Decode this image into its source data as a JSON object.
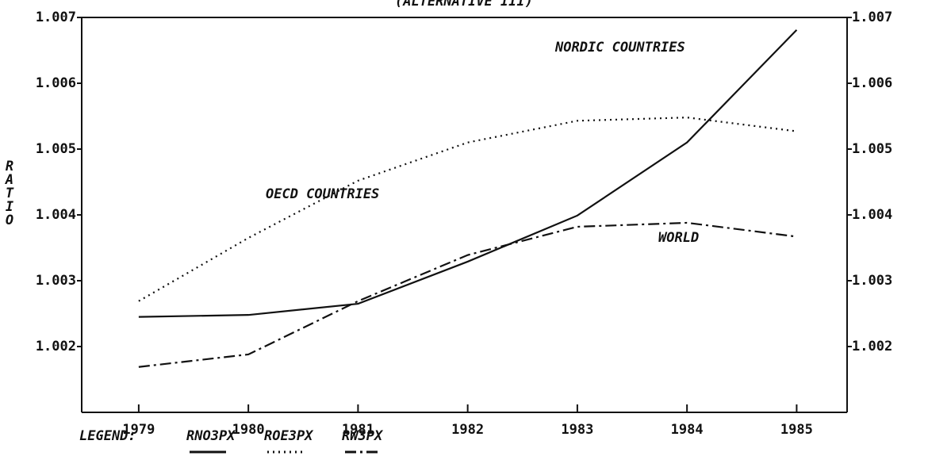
{
  "chart_data": {
    "type": "line",
    "subtitle": "(ALTERNATIVE III)",
    "y_label": "RATIO",
    "x": [
      1979,
      1980,
      1981,
      1982,
      1983,
      1984,
      1985
    ],
    "xlim": [
      1978.48,
      1985.46
    ],
    "xticks": [
      1979,
      1980,
      1981,
      1982,
      1983,
      1984,
      1985
    ],
    "ylim": [
      1.001,
      1.007
    ],
    "yticks": [
      1.002,
      1.003,
      1.004,
      1.005,
      1.006,
      1.007
    ],
    "y2lim": [
      1.001,
      1.007
    ],
    "y2ticks": [
      1.002,
      1.003,
      1.004,
      1.005,
      1.006,
      1.007
    ],
    "legend_title": "LEGEND:",
    "series": [
      {
        "name": "RNO3PX",
        "color": "#111111",
        "style": "solid",
        "values": [
          1.00245,
          1.00248,
          1.00265,
          1.00329,
          1.00399,
          1.0051,
          1.00681
        ]
      },
      {
        "name": "ROE3PX",
        "color": "#111111",
        "style": "dotted",
        "values": [
          1.00269,
          1.00365,
          1.00452,
          1.0051,
          1.00543,
          1.00548,
          1.00527
        ]
      },
      {
        "name": "RW3PX",
        "color": "#111111",
        "style": "dashdot",
        "values": [
          1.00169,
          1.00188,
          1.00269,
          1.00339,
          1.00382,
          1.00388,
          1.00367
        ]
      }
    ],
    "annotations": [
      "NORDIC COUNTRIES",
      "OECD COUNTRIES",
      "WORLD"
    ]
  }
}
